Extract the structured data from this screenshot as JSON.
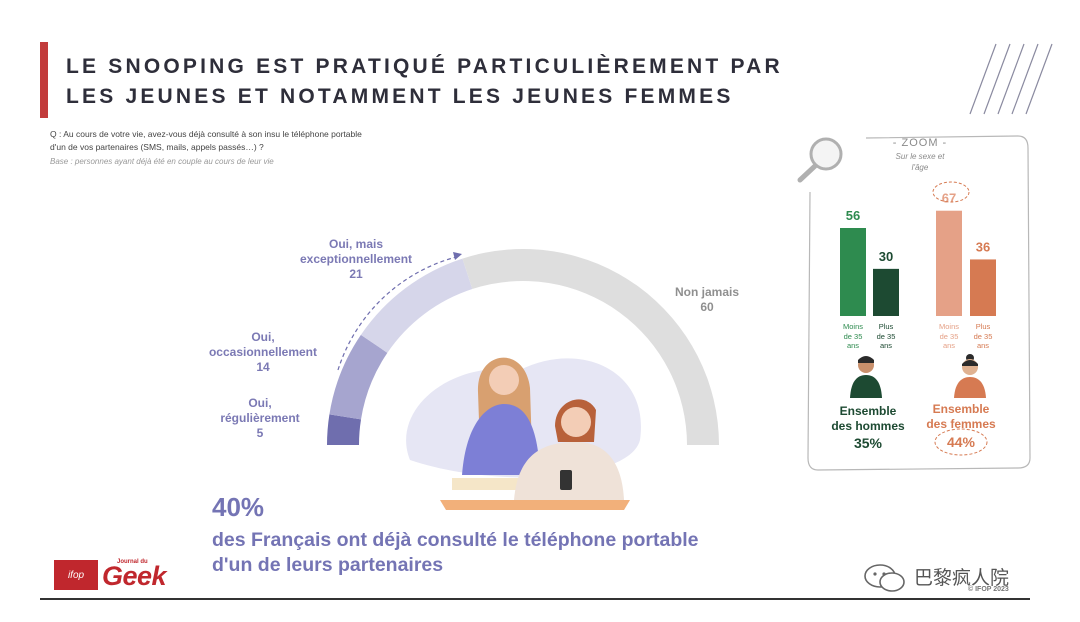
{
  "title_line1": "LE SNOOPING EST PRATIQUÉ PARTICULIÈREMENT PAR",
  "title_line2": "LES JEUNES ET NOTAMMENT LES JEUNES FEMMES",
  "question_line1": "Q : Au cours de votre vie, avez-vous déjà consulté à son insu le téléphone portable",
  "question_line2": "d'un de vos partenaires (SMS, mails, appels passés…) ?",
  "base": "Base : personnes ayant déjà été en couple au cours de leur vie",
  "headline_pct": "40%",
  "headline_line1": "des Français ont déjà consulté le téléphone portable",
  "headline_line2": "d'un de leurs partenaires",
  "logo_ifop": "ifop",
  "logo_journal": "Journal du",
  "logo_geek": "Geek",
  "watermark": "巴黎疯人院",
  "copyright": "© IFOP 2023",
  "zoom": {
    "title": "- ZOOM -",
    "subtitle_line1": "Sur le sexe et",
    "subtitle_line2": "l'âge",
    "men": {
      "label_line1": "Ensemble",
      "label_line2": "des hommes",
      "value": "35%",
      "cat1_line1": "Moins",
      "cat1_line2": "de 35",
      "cat1_line3": "ans",
      "cat2_line1": "Plus",
      "cat2_line2": "de 35",
      "cat2_line3": "ans"
    },
    "women": {
      "label_line1": "Ensemble",
      "label_line2": "des femmes",
      "value": "44%",
      "cat1_line1": "Moins",
      "cat1_line2": "de 35",
      "cat1_line3": "ans",
      "cat2_line1": "Plus",
      "cat2_line2": "de 35",
      "cat2_line3": "ans"
    }
  },
  "gauge_labels": {
    "s1_line1": "Oui,",
    "s1_line2": "régulièrement",
    "s1_value": "5",
    "s2_line1": "Oui,",
    "s2_line2": "occasionnellement",
    "s2_value": "14",
    "s3_line1": "Oui, mais",
    "s3_line2": "exceptionnellement",
    "s3_value": "21",
    "s4_line1": "Non jamais",
    "s4_value": "60"
  },
  "chart_data": [
    {
      "type": "pie",
      "variant": "semi-donut",
      "series": [
        {
          "name": "Oui, régulièrement",
          "value": 5,
          "color": "#6f6eae"
        },
        {
          "name": "Oui, occasionnellement",
          "value": 14,
          "color": "#a6a5cf"
        },
        {
          "name": "Oui, mais exceptionnellement",
          "value": 21,
          "color": "#d6d6ea"
        },
        {
          "name": "Non jamais",
          "value": 60,
          "color": "#dedede"
        }
      ]
    },
    {
      "type": "bar",
      "categories": [
        "Hommes - Moins de 35 ans",
        "Hommes - Plus de 35 ans",
        "Femmes - Moins de 35 ans",
        "Femmes - Plus de 35 ans"
      ],
      "values": [
        56,
        30,
        67,
        36
      ],
      "colors": [
        "#2e8b4f",
        "#1d4a32",
        "#e5a187",
        "#d67a52"
      ],
      "ylim": [
        0,
        70
      ]
    }
  ]
}
